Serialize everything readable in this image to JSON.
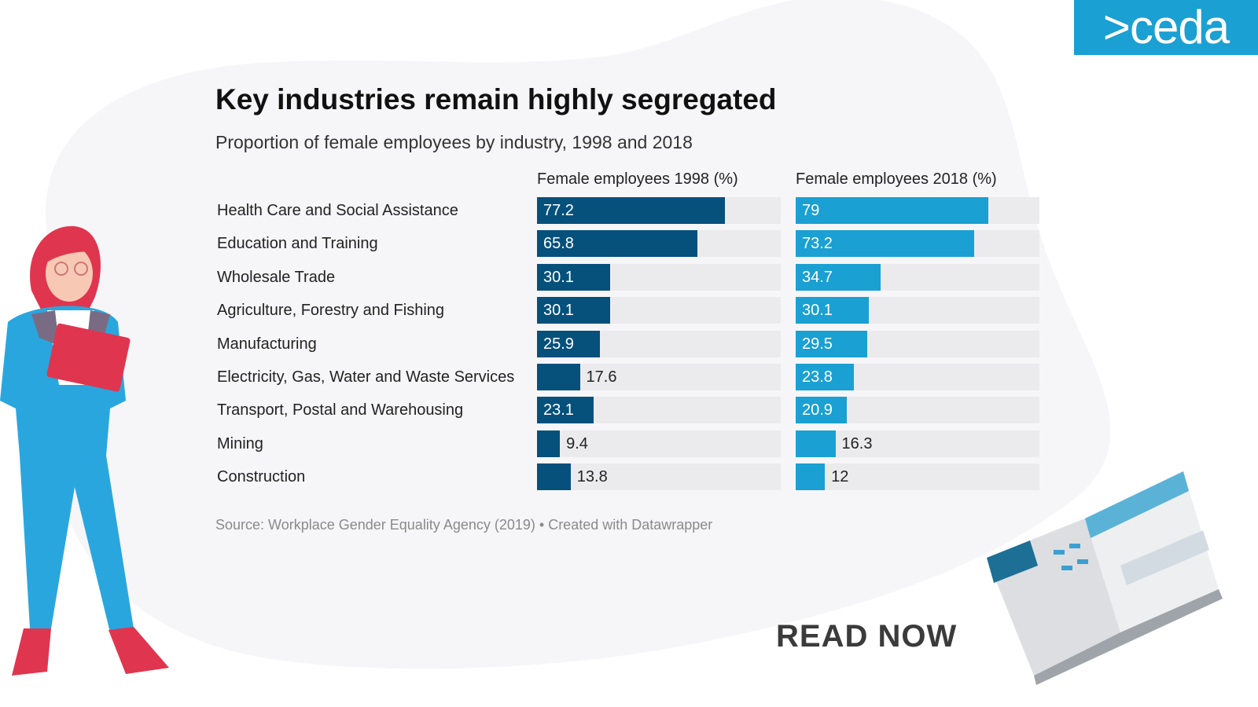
{
  "logo": {
    "text": ">ceda"
  },
  "cta": {
    "read_now": "READ NOW"
  },
  "colors": {
    "bar_1998": "#06507c",
    "bar_2018": "#1aa0d2",
    "track": "#ebebee",
    "logo_bg": "#1aa0d2"
  },
  "illustrations": {
    "left": "woman-holding-clipboard",
    "right": "open-report-brochure"
  },
  "chart_data": {
    "type": "bar",
    "orientation": "horizontal",
    "title": "Key industries remain highly segregated",
    "subtitle": "Proportion of female employees by industry, 1998 and 2018",
    "source": "Source: Workplace Gender Equality Agency (2019) • Created with Datawrapper",
    "categories": [
      "Health Care and Social Assistance",
      "Education and Training",
      "Wholesale Trade",
      "Agriculture, Forestry and Fishing",
      "Manufacturing",
      "Electricity, Gas, Water and Waste Services",
      "Transport, Postal and Warehousing",
      "Mining",
      "Construction"
    ],
    "xlim": [
      0,
      100
    ],
    "series": [
      {
        "name": "Female employees 1998 (%)",
        "values": [
          77.2,
          65.8,
          30.1,
          30.1,
          25.9,
          17.6,
          23.1,
          9.4,
          13.8
        ]
      },
      {
        "name": "Female employees 2018 (%)",
        "values": [
          79,
          73.2,
          34.7,
          30.1,
          29.5,
          23.8,
          20.9,
          16.3,
          12
        ]
      }
    ]
  }
}
